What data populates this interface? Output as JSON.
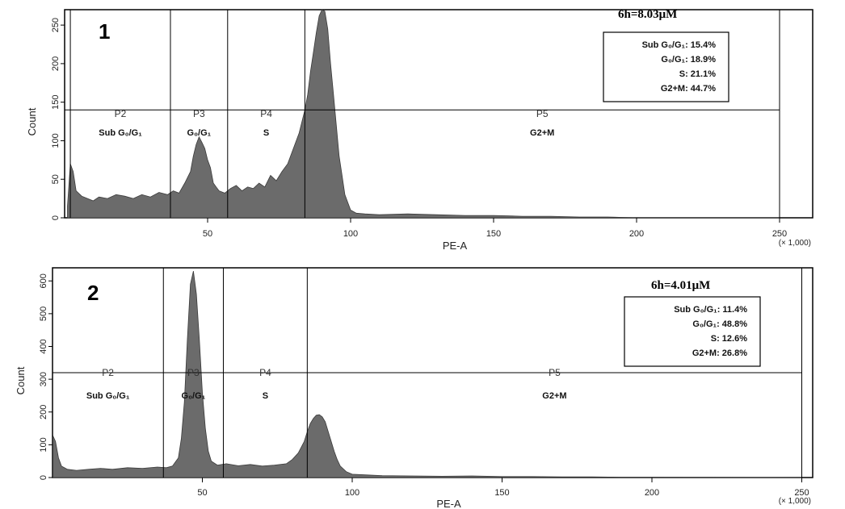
{
  "chart_data": [
    {
      "type": "area",
      "panel_number": "1",
      "title": "6h=8.03μM",
      "xlabel": "PE-A",
      "ylabel": "Count",
      "x_scale_note": "(× 1,000)",
      "xlim": [
        0,
        265
      ],
      "ylim": [
        0,
        270
      ],
      "x_ticks": [
        "50",
        "100",
        "150",
        "200",
        "250"
      ],
      "x_tick_values": [
        50,
        100,
        150,
        200,
        250
      ],
      "y_ticks": [
        "0",
        "50",
        "100",
        "150",
        "200",
        "250"
      ],
      "y_tick_values": [
        0,
        50,
        100,
        150,
        200,
        250
      ],
      "gate_boundaries": [
        2,
        37,
        57,
        84,
        250
      ],
      "gate_level": 140,
      "gates": [
        {
          "name": "P2",
          "label": "Sub G₀/G₁"
        },
        {
          "name": "P3",
          "label": "G₀/G₁"
        },
        {
          "name": "P4",
          "label": "S"
        },
        {
          "name": "P5",
          "label": "G2+M"
        }
      ],
      "stats": [
        {
          "label": "Sub G₀/G₁:",
          "value": "15.4%"
        },
        {
          "label": "G₀/G₁:",
          "value": "18.9%"
        },
        {
          "label": "S:",
          "value": "21.1%"
        },
        {
          "label": "G2+M:",
          "value": "44.7%"
        }
      ],
      "series": [
        {
          "x": [
            1,
            2,
            3,
            4,
            6,
            8,
            10,
            12,
            15,
            18,
            21,
            24,
            27,
            30,
            33,
            36,
            38,
            40,
            42,
            44,
            45,
            46,
            47,
            48,
            49,
            50,
            51,
            52,
            53,
            54,
            56,
            58,
            60,
            62,
            64,
            66,
            68,
            70,
            72,
            74,
            76,
            78,
            80,
            82,
            84,
            85,
            86,
            87,
            88,
            89,
            90,
            91,
            92,
            93,
            94,
            95,
            96,
            97,
            98,
            100,
            102,
            105,
            110,
            120,
            130,
            140,
            150,
            160,
            170,
            180,
            190,
            200,
            210,
            250
          ],
          "y": [
            15,
            70,
            60,
            35,
            28,
            25,
            22,
            27,
            25,
            30,
            28,
            25,
            30,
            27,
            33,
            30,
            35,
            32,
            45,
            60,
            80,
            95,
            105,
            98,
            90,
            75,
            65,
            45,
            40,
            35,
            32,
            38,
            42,
            35,
            40,
            38,
            45,
            40,
            55,
            48,
            60,
            70,
            90,
            110,
            140,
            160,
            190,
            215,
            240,
            262,
            275,
            268,
            245,
            200,
            160,
            120,
            80,
            55,
            30,
            10,
            6,
            5,
            4,
            5,
            4,
            3,
            3,
            2,
            2,
            1,
            1,
            0,
            0,
            0
          ]
        }
      ]
    },
    {
      "type": "area",
      "panel_number": "2",
      "title": "6h=4.01μM",
      "xlabel": "PE-A",
      "ylabel": "Count",
      "x_scale_note": "(× 1,000)",
      "xlim": [
        0,
        265
      ],
      "ylim": [
        0,
        640
      ],
      "x_ticks": [
        "50",
        "100",
        "150",
        "200",
        "250"
      ],
      "x_tick_values": [
        50,
        100,
        150,
        200,
        250
      ],
      "y_ticks": [
        "0",
        "100",
        "200",
        "300",
        "400",
        "500",
        "600"
      ],
      "y_tick_values": [
        0,
        100,
        200,
        300,
        400,
        500,
        600
      ],
      "gate_boundaries": [
        0,
        37,
        57,
        85,
        250
      ],
      "gate_level": 320,
      "gates": [
        {
          "name": "P2",
          "label": "Sub G₀/G₁"
        },
        {
          "name": "P3",
          "label": "G₀/G₁"
        },
        {
          "name": "P4",
          "label": "S"
        },
        {
          "name": "P5",
          "label": "G2+M"
        }
      ],
      "stats": [
        {
          "label": "Sub G₀/G₁:",
          "value": "11.4%"
        },
        {
          "label": "G₀/G₁:",
          "value": "48.8%"
        },
        {
          "label": "S:",
          "value": "12.6%"
        },
        {
          "label": "G2+M:",
          "value": "26.8%"
        }
      ],
      "series": [
        {
          "x": [
            0,
            1,
            2,
            3,
            5,
            8,
            12,
            16,
            20,
            25,
            30,
            35,
            38,
            40,
            42,
            43,
            44,
            45,
            46,
            47,
            48,
            49,
            50,
            51,
            52,
            53,
            55,
            58,
            62,
            66,
            70,
            74,
            78,
            80,
            82,
            84,
            85,
            86,
            87,
            88,
            89,
            90,
            91,
            92,
            93,
            94,
            95,
            96,
            98,
            100,
            105,
            110,
            120,
            130,
            140,
            150,
            160,
            170,
            180,
            190,
            200,
            250
          ],
          "y": [
            130,
            110,
            60,
            35,
            25,
            22,
            25,
            28,
            25,
            30,
            28,
            32,
            30,
            35,
            60,
            120,
            230,
            420,
            590,
            630,
            560,
            420,
            260,
            150,
            80,
            50,
            38,
            42,
            36,
            40,
            35,
            38,
            42,
            55,
            75,
            110,
            140,
            165,
            180,
            190,
            192,
            185,
            170,
            140,
            110,
            80,
            55,
            35,
            18,
            10,
            8,
            6,
            5,
            4,
            5,
            3,
            3,
            2,
            2,
            1,
            1,
            0
          ]
        }
      ]
    }
  ]
}
